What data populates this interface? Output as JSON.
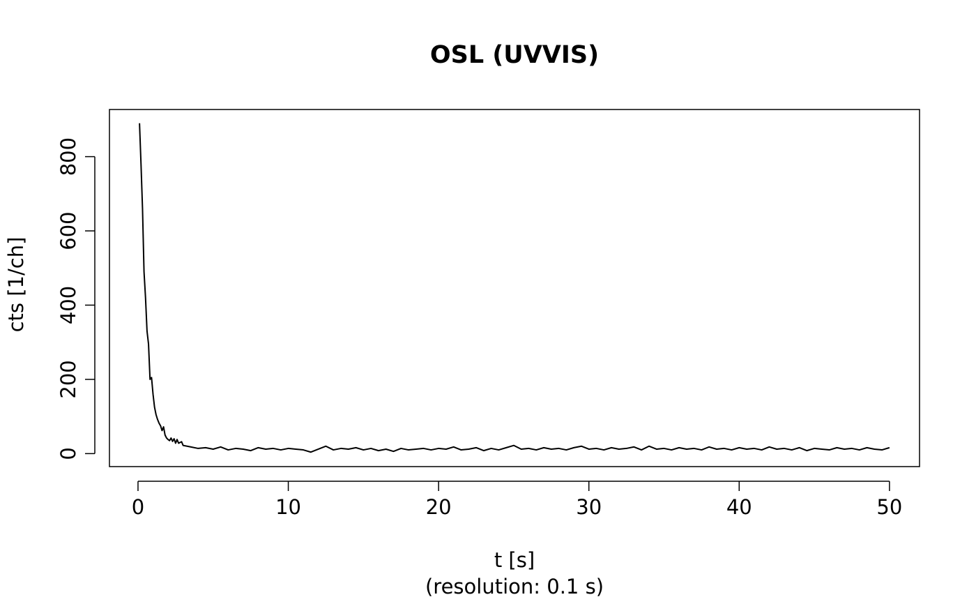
{
  "chart_data": {
    "type": "line",
    "title": "OSL (UVVIS)",
    "xlabel": "t [s]",
    "xlabel_note": "(resolution: 0.1 s)",
    "ylabel": "cts [1/ch]",
    "color": "#000000",
    "x": [
      0.1,
      0.2,
      0.3,
      0.4,
      0.5,
      0.6,
      0.7,
      0.8,
      0.9,
      1.0,
      1.1,
      1.2,
      1.3,
      1.4,
      1.5,
      1.6,
      1.7,
      1.8,
      1.9,
      2.0,
      2.1,
      2.2,
      2.3,
      2.4,
      2.5,
      2.6,
      2.7,
      2.8,
      2.9,
      3.0,
      3.5,
      4,
      4.5,
      5,
      5.5,
      6,
      6.5,
      7,
      7.5,
      8,
      8.5,
      9,
      9.5,
      10,
      10.5,
      11,
      11.5,
      12,
      12.5,
      13,
      13.5,
      14,
      14.5,
      15,
      15.5,
      16,
      16.5,
      17,
      17.5,
      18,
      18.5,
      19,
      19.5,
      20,
      20.5,
      21,
      21.5,
      22,
      22.5,
      23,
      23.5,
      24,
      24.5,
      25,
      25.5,
      26,
      26.5,
      27,
      27.5,
      28,
      28.5,
      29,
      29.5,
      30,
      30.5,
      31,
      31.5,
      32,
      32.5,
      33,
      33.5,
      34,
      34.5,
      35,
      35.5,
      36,
      36.5,
      37,
      37.5,
      38,
      38.5,
      39,
      39.5,
      40,
      40.5,
      41,
      41.5,
      42,
      42.5,
      43,
      43.5,
      44,
      44.5,
      45,
      45.5,
      46,
      46.5,
      47,
      47.5,
      48,
      48.5,
      49,
      49.5,
      50
    ],
    "values": [
      890,
      780,
      660,
      490,
      420,
      330,
      295,
      200,
      205,
      160,
      125,
      105,
      92,
      82,
      75,
      62,
      72,
      50,
      42,
      38,
      35,
      42,
      33,
      40,
      28,
      38,
      28,
      30,
      32,
      22,
      18,
      14,
      16,
      12,
      18,
      10,
      14,
      12,
      8,
      16,
      12,
      14,
      10,
      14,
      12,
      10,
      4,
      12,
      20,
      10,
      14,
      12,
      16,
      10,
      14,
      8,
      12,
      6,
      14,
      10,
      12,
      14,
      10,
      14,
      12,
      18,
      10,
      12,
      16,
      8,
      14,
      10,
      16,
      22,
      12,
      14,
      10,
      16,
      12,
      14,
      10,
      16,
      20,
      12,
      14,
      10,
      16,
      12,
      14,
      18,
      10,
      20,
      12,
      14,
      10,
      16,
      12,
      14,
      10,
      18,
      12,
      14,
      10,
      16,
      12,
      14,
      10,
      18,
      12,
      14,
      10,
      16,
      8,
      14,
      12,
      10,
      16,
      12,
      14,
      10,
      16,
      12,
      10,
      16
    ],
    "xlim": [
      -1.9,
      52
    ],
    "ylim": [
      -35,
      927
    ],
    "xticks": [
      0,
      10,
      20,
      30,
      40,
      50
    ],
    "yticks": [
      0,
      200,
      400,
      600,
      800
    ]
  }
}
